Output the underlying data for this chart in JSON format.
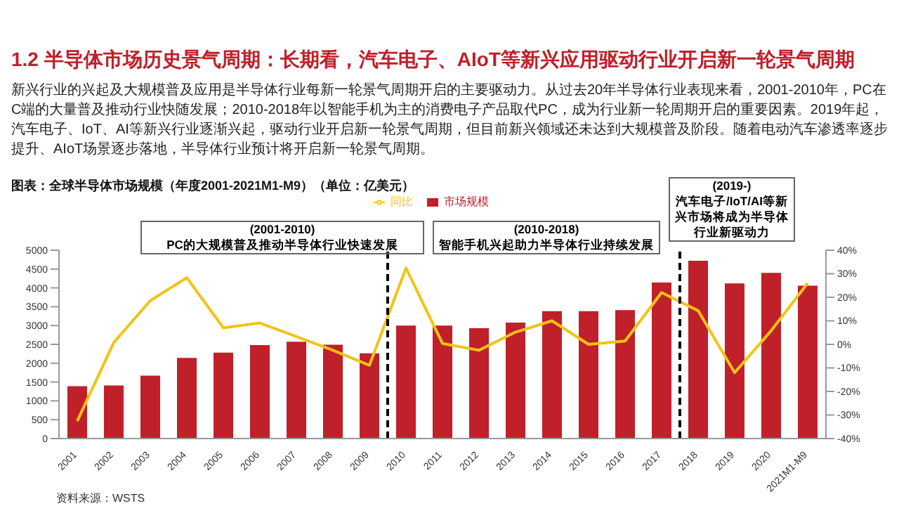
{
  "chart_data": {
    "type": "bar",
    "title": "1.2 半导体市场历史景气周期：长期看，汽车电子、AIoT等新兴应用驱动行业开启新一轮景气周期",
    "subtitle": "图表：全球半导体市场规模（年度2001-2021M1-M9）（单位：亿美元）",
    "categories": [
      "2001",
      "2002",
      "2003",
      "2004",
      "2005",
      "2006",
      "2007",
      "2008",
      "2009",
      "2010",
      "2011",
      "2012",
      "2013",
      "2014",
      "2015",
      "2016",
      "2017",
      "2018",
      "2019",
      "2020",
      "2021M1-M9"
    ],
    "series": [
      {
        "name": "市场规模",
        "color": "#c0202a",
        "values": [
          1390,
          1410,
          1670,
          2140,
          2280,
          2480,
          2570,
          2490,
          2260,
          3000,
          3000,
          2930,
          3080,
          3380,
          3380,
          3410,
          4140,
          4720,
          4120,
          4400,
          4060
        ]
      },
      {
        "name": "同比",
        "type": "line",
        "axis": "y2",
        "color": "#f2c318",
        "values": [
          -32.6,
          0.8,
          18.6,
          28.3,
          7,
          9.1,
          3.3,
          -2.5,
          -8.9,
          32.4,
          0.4,
          -2.5,
          5.2,
          10,
          0,
          1.4,
          22,
          14.3,
          -12,
          5.8,
          26
        ]
      }
    ],
    "ylim": [
      0,
      5000
    ],
    "yticks": [
      0,
      500,
      1000,
      1500,
      2000,
      2500,
      3000,
      3500,
      4000,
      4500,
      5000
    ],
    "y2lim": [
      -40,
      40
    ],
    "y2ticks": [
      {
        "value": -40,
        "label": "-40%"
      },
      {
        "value": -30,
        "label": "-30%"
      },
      {
        "value": -20,
        "label": "-20%"
      },
      {
        "value": -10,
        "label": "-10%"
      },
      {
        "value": 0,
        "label": "0%"
      },
      {
        "value": 10,
        "label": "10%"
      },
      {
        "value": 20,
        "label": "20%"
      },
      {
        "value": 30,
        "label": "30%"
      },
      {
        "value": 40,
        "label": "40%"
      }
    ],
    "ref_lines": [
      {
        "axis": "x",
        "value": "2010",
        "color": "#000000",
        "line_style": "dashed"
      },
      {
        "axis": "x",
        "value": "2018",
        "color": "#000000",
        "line_style": "dashed"
      }
    ],
    "annotations": [
      "新兴行业的兴起及大规模普及应用是半导体行业每新一轮景气周期开启的主要驱动力。从过去20年半导体行业表现来看，2001-2010年，PC在C端的大量普及推动行业快随发展；2010-2018年以智能手机为主的消费电子产品取代PC，成为行业新一轮周期开启的重要因素。2019年起，汽车电子、IoT、AI等新兴行业逐渐兴起，驱动行业开启新一轮景气周期，但目前新兴领域还未达到大规模普及阶段。随着电动汽车渗透率逐步提升、AIoT场景逐步落地，半导体行业预计将开启新一轮景气周期。",
      "(2001-2010)\nPC的大规模普及推动半导体行业快速发展",
      "(2010-2018)\n智能手机兴起助力半导体行业持续发展",
      "(2019-)\n汽车电子/IoT/AI等新兴市场将成为半导体行业新驱动力",
      "资料来源：WSTS"
    ],
    "grid": false,
    "legend": "top",
    "marker": "none"
  }
}
